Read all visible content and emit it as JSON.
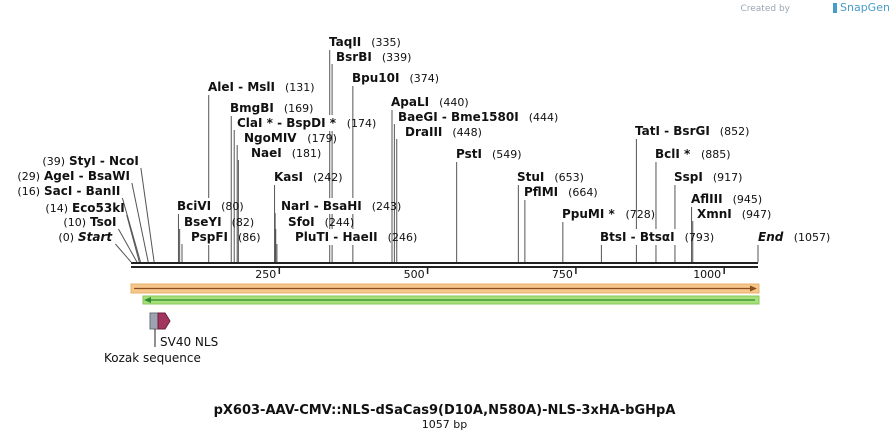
{
  "brand": {
    "created_by": "Created by",
    "name": "SnapGene"
  },
  "sequence": {
    "length": 1057,
    "scale_ticks": [
      250,
      500,
      750,
      1000
    ]
  },
  "title": "pX603-AAV-CMV::NLS-dSaCas9(D10A,N580A)-NLS-3xHA-bGHpA",
  "subtitle": "1057 bp",
  "sites": [
    {
      "name": "Start",
      "pos": 0,
      "label": "(0)",
      "italic": true,
      "side": "left"
    },
    {
      "name": "TsoI",
      "pos": 10,
      "label": "(10)",
      "side": "left"
    },
    {
      "name": "Eco53kI",
      "pos": 14,
      "label": "(14)",
      "side": "left"
    },
    {
      "name": "SacI - BanII",
      "pos": 16,
      "label": "(16)",
      "side": "left"
    },
    {
      "name": "AgeI - BsaWI",
      "pos": 29,
      "label": "(29)",
      "side": "left"
    },
    {
      "name": "StyI - NcoI",
      "pos": 39,
      "label": "(39)",
      "side": "left"
    },
    {
      "name": "BciVI",
      "pos": 80,
      "label": "(80)"
    },
    {
      "name": "BseYI",
      "pos": 82,
      "label": "(82)"
    },
    {
      "name": "PspFI",
      "pos": 86,
      "label": "(86)"
    },
    {
      "name": "AleI - MslI",
      "pos": 131,
      "label": "(131)"
    },
    {
      "name": "BmgBI",
      "pos": 169,
      "label": "(169)"
    },
    {
      "name": "ClaI * - BspDI *",
      "pos": 174,
      "label": "(174)"
    },
    {
      "name": "NgoMIV",
      "pos": 179,
      "label": "(179)"
    },
    {
      "name": "NaeI",
      "pos": 181,
      "label": "(181)"
    },
    {
      "name": "KasI",
      "pos": 242,
      "label": "(242)"
    },
    {
      "name": "NarI - BsaHI",
      "pos": 243,
      "label": "(243)"
    },
    {
      "name": "SfoI",
      "pos": 244,
      "label": "(244)"
    },
    {
      "name": "PluTI - HaeII",
      "pos": 246,
      "label": "(246)"
    },
    {
      "name": "TaqII",
      "pos": 335,
      "label": "(335)"
    },
    {
      "name": "BsrBI",
      "pos": 339,
      "label": "(339)"
    },
    {
      "name": "Bpu10I",
      "pos": 374,
      "label": "(374)"
    },
    {
      "name": "ApaLI",
      "pos": 440,
      "label": "(440)"
    },
    {
      "name": "BaeGI - Bme1580I",
      "pos": 444,
      "label": "(444)"
    },
    {
      "name": "DraIII",
      "pos": 448,
      "label": "(448)"
    },
    {
      "name": "PstI",
      "pos": 549,
      "label": "(549)"
    },
    {
      "name": "StuI",
      "pos": 653,
      "label": "(653)"
    },
    {
      "name": "PflMI",
      "pos": 664,
      "label": "(664)"
    },
    {
      "name": "PpuMI *",
      "pos": 728,
      "label": "(728)"
    },
    {
      "name": "BtsI - BtsαI",
      "pos": 793,
      "label": "(793)"
    },
    {
      "name": "TatI - BsrGI",
      "pos": 852,
      "label": "(852)"
    },
    {
      "name": "BclI *",
      "pos": 885,
      "label": "(885)"
    },
    {
      "name": "SspI",
      "pos": 917,
      "label": "(917)"
    },
    {
      "name": "AflIII",
      "pos": 945,
      "label": "(945)"
    },
    {
      "name": "XmnI",
      "pos": 947,
      "label": "(947)"
    },
    {
      "name": "End",
      "pos": 1057,
      "label": "(1057)",
      "italic": true
    }
  ],
  "features": [
    {
      "name": "SV40 NLS",
      "color": "#a3365f"
    },
    {
      "name": "Kozak sequence",
      "color": "#9ea3b2"
    }
  ],
  "colors": {
    "forward_bar": "#f6c68a",
    "reverse_bar": "#a6e07a",
    "arrow_fwd": "#8a4e1c",
    "arrow_rev": "#2f8a2f"
  }
}
